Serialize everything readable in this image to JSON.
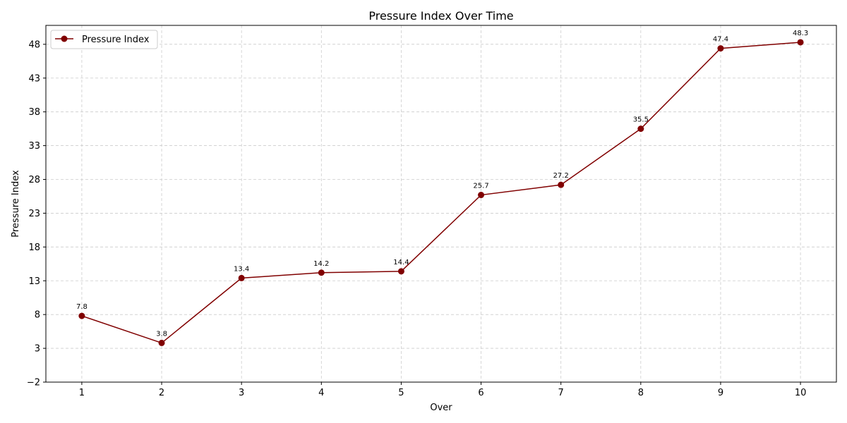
{
  "chart_data": {
    "type": "line",
    "title": "Pressure Index Over Time",
    "xlabel": "Over",
    "ylabel": "Pressure Index",
    "x": [
      1,
      2,
      3,
      4,
      5,
      6,
      7,
      8,
      9,
      10
    ],
    "xlim": [
      0.55,
      10.45
    ],
    "ylim": [
      -2,
      50.8
    ],
    "yticks": [
      -2,
      3,
      8,
      13,
      18,
      23,
      28,
      33,
      38,
      43,
      48
    ],
    "ytick_labels": [
      "−2",
      "3",
      "8",
      "13",
      "18",
      "23",
      "28",
      "33",
      "38",
      "43",
      "48"
    ],
    "grid": true,
    "legend_position": "top-left",
    "series": [
      {
        "name": "Pressure Index",
        "color": "#800000",
        "values": [
          7.8,
          3.8,
          13.4,
          14.2,
          14.4,
          25.7,
          27.2,
          35.5,
          47.4,
          48.3
        ],
        "labels": [
          "7.8",
          "3.8",
          "13.4",
          "14.2",
          "14.4",
          "25.7",
          "27.2",
          "35.5",
          "47.4",
          "48.3"
        ]
      }
    ]
  }
}
